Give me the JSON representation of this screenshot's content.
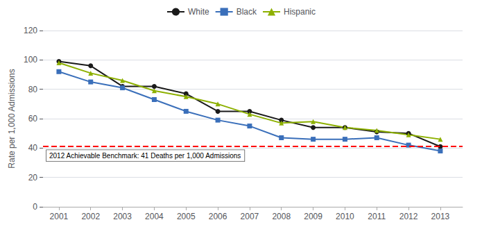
{
  "chart_data": {
    "type": "line",
    "x": [
      2001,
      2002,
      2003,
      2004,
      2005,
      2006,
      2007,
      2008,
      2009,
      2010,
      2011,
      2012,
      2013
    ],
    "xlim": [
      2000.5,
      2013.7
    ],
    "xticks": [
      2001,
      2002,
      2003,
      2004,
      2005,
      2006,
      2007,
      2008,
      2009,
      2010,
      2011,
      2012,
      2013
    ],
    "ylim": [
      0,
      120
    ],
    "yticks": [
      0,
      20,
      40,
      60,
      80,
      100,
      120
    ],
    "ylabel": "Rate per 1,000 Admissions",
    "grid": true,
    "legend": "top",
    "series": [
      {
        "name": "White",
        "color": "#1a1a1a",
        "marker": "circle",
        "values": [
          99,
          96,
          82,
          82,
          77,
          65,
          65,
          59,
          54,
          54,
          51,
          50,
          41
        ]
      },
      {
        "name": "Black",
        "color": "#3a6fba",
        "marker": "square",
        "values": [
          92,
          85,
          81,
          73,
          65,
          59,
          55,
          47,
          46,
          46,
          47,
          42,
          38
        ]
      },
      {
        "name": "Hispanic",
        "color": "#8db000",
        "marker": "triangle",
        "values": [
          98,
          91,
          86,
          79,
          75,
          70,
          63,
          57,
          58,
          54,
          52,
          49,
          46
        ]
      }
    ],
    "reference_lines": [
      {
        "y": 41,
        "label": "2012 Achievable Benchmark: 41 Deaths per 1,000 Admissions",
        "color": "#ff0000",
        "line_style": "dashed"
      }
    ]
  }
}
